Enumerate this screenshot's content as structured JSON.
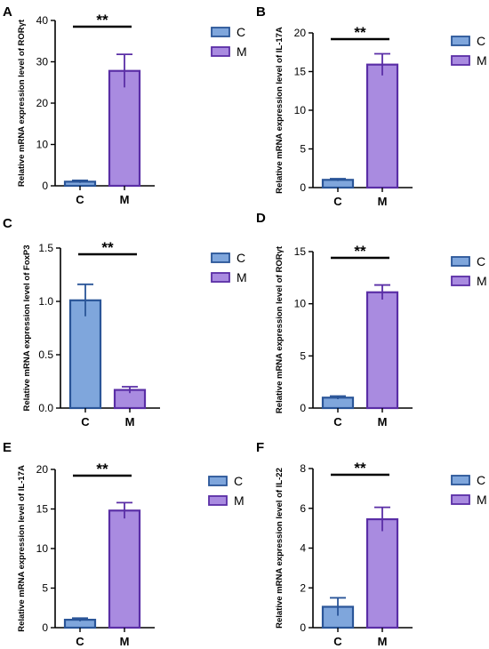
{
  "colors": {
    "C_fill": "#7fa6dc",
    "C_stroke": "#2a5598",
    "M_fill": "#a98be0",
    "M_stroke": "#5a2ea6"
  },
  "chart_data": [
    {
      "type": "bar",
      "panel": "A",
      "categories": [
        "C",
        "M"
      ],
      "values": [
        1.0,
        27.8
      ],
      "errors": [
        0.3,
        4.0
      ],
      "ylabel": "Relative mRNA expression level of RORγt",
      "ylim": [
        0,
        40
      ],
      "yticks": [
        0,
        10,
        20,
        30,
        40
      ],
      "significance": "**",
      "legend": [
        "C",
        "M"
      ],
      "legend_position": "right"
    },
    {
      "type": "bar",
      "panel": "B",
      "categories": [
        "C",
        "M"
      ],
      "values": [
        1.0,
        15.9
      ],
      "errors": [
        0.15,
        1.4
      ],
      "ylabel": "Relative mRNA expression level of IL-17A",
      "ylim": [
        0,
        20
      ],
      "yticks": [
        0,
        5,
        10,
        15,
        20
      ],
      "significance": "**",
      "legend": [
        "C",
        "M"
      ],
      "legend_position": "right"
    },
    {
      "type": "bar",
      "panel": "C",
      "categories": [
        "C",
        "M"
      ],
      "values": [
        1.01,
        0.17
      ],
      "errors": [
        0.15,
        0.03
      ],
      "ylabel": "Relative mRNA expression level of FoxP3",
      "ylim": [
        0,
        1.5
      ],
      "yticks": [
        "0.0",
        "0.5",
        "1.0",
        "1.5"
      ],
      "significance": "**",
      "legend": [
        "C",
        "M"
      ],
      "legend_position": "right"
    },
    {
      "type": "bar",
      "panel": "D",
      "categories": [
        "C",
        "M"
      ],
      "values": [
        1.0,
        11.1
      ],
      "errors": [
        0.15,
        0.7
      ],
      "ylabel": "Relative mRNA expression level of RORγt",
      "ylim": [
        0,
        15
      ],
      "yticks": [
        0,
        5,
        10,
        15
      ],
      "significance": "**",
      "legend": [
        "C",
        "M"
      ],
      "legend_position": "right"
    },
    {
      "type": "bar",
      "panel": "E",
      "categories": [
        "C",
        "M"
      ],
      "values": [
        1.0,
        14.8
      ],
      "errors": [
        0.2,
        1.0
      ],
      "ylabel": "Relative mRNA expression level of IL-17A",
      "ylim": [
        0,
        20
      ],
      "yticks": [
        0,
        5,
        10,
        15,
        20
      ],
      "significance": "**",
      "legend": [
        "C",
        "M"
      ],
      "legend_position": "right"
    },
    {
      "type": "bar",
      "panel": "F",
      "categories": [
        "C",
        "M"
      ],
      "values": [
        1.05,
        5.45
      ],
      "errors": [
        0.45,
        0.6
      ],
      "ylabel": "Relative mRNA expression level of IL-22",
      "ylim": [
        0,
        8
      ],
      "yticks": [
        0,
        2,
        4,
        6,
        8
      ],
      "significance": "**",
      "legend": [
        "C",
        "M"
      ],
      "legend_position": "right"
    }
  ]
}
